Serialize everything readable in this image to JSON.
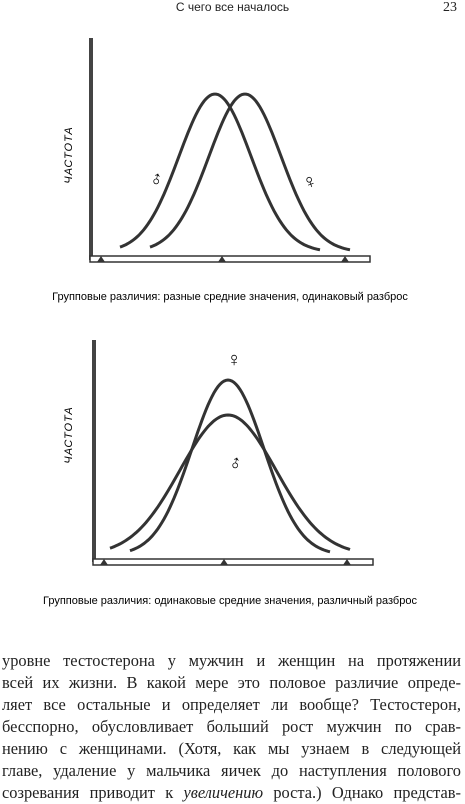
{
  "header": {
    "title": "С чего все началось",
    "page_number": "23"
  },
  "figures": [
    {
      "y_label": "ЧАСТОТА",
      "male_symbol": "♂",
      "female_symbol": "♀",
      "caption": "Групповые различия: разные средние значения, одинаковый разброс"
    },
    {
      "y_label": "ЧАСТОТА",
      "female_symbol": "♀",
      "male_symbol": "♂",
      "caption": "Групповые различия: одинаковые средние значения, различный разброс"
    }
  ],
  "body": {
    "lines": [
      "уровне тестостерона у мужчин и женщин на протяжении",
      "всей их жизни. В какой мере это половое различие опреде-",
      "ляет все остальные и определяет ли вообще? Тестостерон,",
      "бесспорно, обусловливает больший рост мужчин по срав-",
      "нению с женщинами. (Хотя, как мы узнаем в следующей",
      "главе, удаление у мальчика яичек до наступления полового"
    ],
    "last_line": {
      "before": "созревания приводит к ",
      "italic": "увеличению",
      "after": " роста.) Однако представ-"
    }
  }
}
